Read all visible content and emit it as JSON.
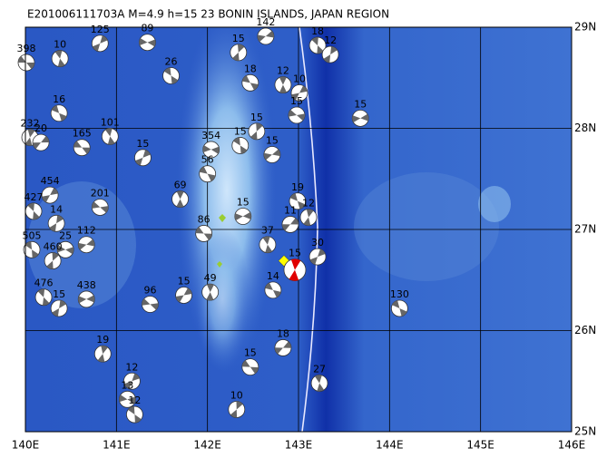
{
  "chart_data": {
    "type": "map",
    "title": "E201006111703A M=4.9 h=15 23 BONIN ISLANDS, JAPAN REGION",
    "xlim": [
      140,
      146
    ],
    "ylim": [
      25,
      29
    ],
    "xticks": [
      {
        "value": 140,
        "label": "140E"
      },
      {
        "value": 141,
        "label": "141E"
      },
      {
        "value": 142,
        "label": "142E"
      },
      {
        "value": 143,
        "label": "143E"
      },
      {
        "value": 144,
        "label": "144E"
      },
      {
        "value": 145,
        "label": "145E"
      },
      {
        "value": 146,
        "label": "146E"
      }
    ],
    "yticks": [
      {
        "value": 25,
        "label": "25N"
      },
      {
        "value": 26,
        "label": "26N"
      },
      {
        "value": 27,
        "label": "27N"
      },
      {
        "value": 28,
        "label": "28N"
      },
      {
        "value": 29,
        "label": "29N"
      }
    ],
    "grid": true,
    "main_event": {
      "x": 142.96,
      "y": 26.6,
      "label": "15",
      "color": "#e00000"
    },
    "events": [
      {
        "x": 140.01,
        "y": 28.65,
        "label": "398"
      },
      {
        "x": 140.38,
        "y": 28.69,
        "label": "10"
      },
      {
        "x": 140.82,
        "y": 28.84,
        "label": "125"
      },
      {
        "x": 141.34,
        "y": 28.85,
        "label": "89"
      },
      {
        "x": 141.6,
        "y": 28.52,
        "label": "26"
      },
      {
        "x": 142.34,
        "y": 28.75,
        "label": "15"
      },
      {
        "x": 142.64,
        "y": 28.91,
        "label": "142"
      },
      {
        "x": 142.47,
        "y": 28.45,
        "label": "18"
      },
      {
        "x": 142.83,
        "y": 28.43,
        "label": "12"
      },
      {
        "x": 143.01,
        "y": 28.35,
        "label": "10"
      },
      {
        "x": 142.98,
        "y": 28.13,
        "label": "15"
      },
      {
        "x": 143.21,
        "y": 28.82,
        "label": "18"
      },
      {
        "x": 143.35,
        "y": 28.73,
        "label": "12"
      },
      {
        "x": 143.68,
        "y": 28.1,
        "label": "15"
      },
      {
        "x": 140.37,
        "y": 28.15,
        "label": "16"
      },
      {
        "x": 140.05,
        "y": 27.91,
        "label": "232"
      },
      {
        "x": 140.17,
        "y": 27.86,
        "label": "20"
      },
      {
        "x": 140.62,
        "y": 27.81,
        "label": "165"
      },
      {
        "x": 140.93,
        "y": 27.92,
        "label": "101"
      },
      {
        "x": 141.29,
        "y": 27.71,
        "label": "15"
      },
      {
        "x": 142.04,
        "y": 27.79,
        "label": "354"
      },
      {
        "x": 142.36,
        "y": 27.83,
        "label": "15"
      },
      {
        "x": 142.54,
        "y": 27.97,
        "label": "15"
      },
      {
        "x": 142.71,
        "y": 27.74,
        "label": "15"
      },
      {
        "x": 142.0,
        "y": 27.55,
        "label": "56"
      },
      {
        "x": 141.7,
        "y": 27.3,
        "label": "69"
      },
      {
        "x": 140.27,
        "y": 27.34,
        "label": "454"
      },
      {
        "x": 140.82,
        "y": 27.22,
        "label": "201"
      },
      {
        "x": 140.09,
        "y": 27.18,
        "label": "427"
      },
      {
        "x": 140.34,
        "y": 27.06,
        "label": "14"
      },
      {
        "x": 142.39,
        "y": 27.13,
        "label": "15"
      },
      {
        "x": 142.99,
        "y": 27.28,
        "label": "19"
      },
      {
        "x": 143.11,
        "y": 27.12,
        "label": "12"
      },
      {
        "x": 142.91,
        "y": 27.05,
        "label": "11"
      },
      {
        "x": 141.96,
        "y": 26.96,
        "label": "86"
      },
      {
        "x": 142.66,
        "y": 26.85,
        "label": "37"
      },
      {
        "x": 143.21,
        "y": 26.73,
        "label": "30"
      },
      {
        "x": 140.44,
        "y": 26.8,
        "label": "25"
      },
      {
        "x": 140.07,
        "y": 26.8,
        "label": "505"
      },
      {
        "x": 140.3,
        "y": 26.69,
        "label": "460"
      },
      {
        "x": 140.67,
        "y": 26.85,
        "label": "112"
      },
      {
        "x": 142.72,
        "y": 26.4,
        "label": "14"
      },
      {
        "x": 142.03,
        "y": 26.38,
        "label": "49"
      },
      {
        "x": 141.74,
        "y": 26.35,
        "label": "15"
      },
      {
        "x": 141.37,
        "y": 26.26,
        "label": "96"
      },
      {
        "x": 140.2,
        "y": 26.33,
        "label": "476"
      },
      {
        "x": 140.37,
        "y": 26.22,
        "label": "15"
      },
      {
        "x": 140.67,
        "y": 26.31,
        "label": "438"
      },
      {
        "x": 144.11,
        "y": 26.22,
        "label": "130"
      },
      {
        "x": 140.85,
        "y": 25.77,
        "label": "19"
      },
      {
        "x": 142.83,
        "y": 25.83,
        "label": "18"
      },
      {
        "x": 142.47,
        "y": 25.64,
        "label": "15"
      },
      {
        "x": 143.23,
        "y": 25.48,
        "label": "27"
      },
      {
        "x": 141.17,
        "y": 25.5,
        "label": "12"
      },
      {
        "x": 141.12,
        "y": 25.32,
        "label": "13"
      },
      {
        "x": 141.2,
        "y": 25.17,
        "label": "12"
      },
      {
        "x": 142.32,
        "y": 25.22,
        "label": "10"
      }
    ]
  }
}
